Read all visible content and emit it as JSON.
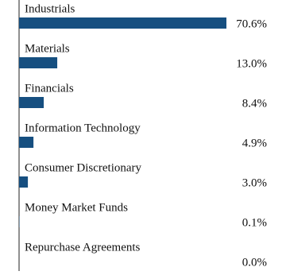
{
  "chart_data": {
    "type": "hbar",
    "categories": [
      "Industrials",
      "Materials",
      "Financials",
      "Information Technology",
      "Consumer Discretionary",
      "Money Market Funds",
      "Repurchase Agreements"
    ],
    "values": [
      70.6,
      13.0,
      8.4,
      4.9,
      3.0,
      0.1,
      0.0
    ],
    "value_labels": [
      "70.6%",
      "13.0%",
      "8.4%",
      "4.9%",
      "3.0%",
      "0.1%",
      "0.0%"
    ],
    "color": "#164f80"
  }
}
